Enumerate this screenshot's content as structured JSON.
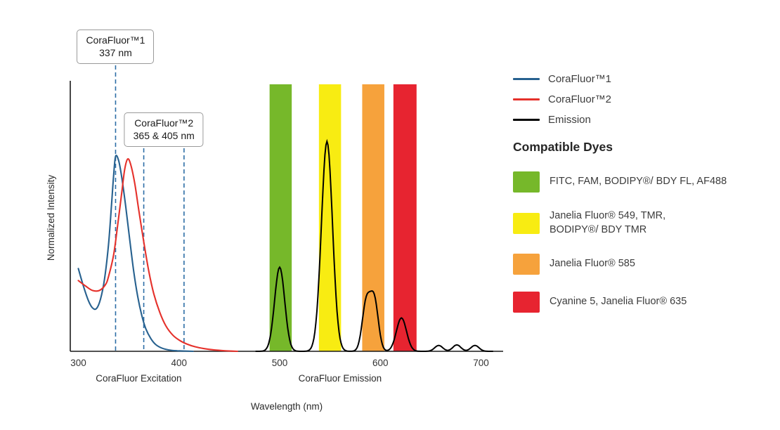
{
  "page": {
    "background": "#ffffff"
  },
  "callouts": {
    "callout1": {
      "line1": "CoraFluor™1",
      "line2": "337 nm"
    },
    "callout2": {
      "line1": "CoraFluor™2",
      "line2": "365 & 405 nm"
    }
  },
  "legend": {
    "items": [
      {
        "label": "CoraFluor™1",
        "color": "#27618f"
      },
      {
        "label": "CoraFluor™2",
        "color": "#e5312b"
      },
      {
        "label": "Emission",
        "color": "#000000"
      }
    ]
  },
  "compatible_dyes": {
    "heading": "Compatible Dyes",
    "items": [
      {
        "label": "FITC, FAM, BODIPY®/ BDY FL, AF488",
        "color": "#76b82a"
      },
      {
        "label": "Janelia Fluor® 549, TMR,\nBODIPY®/ BDY TMR",
        "color": "#f8ec12"
      },
      {
        "label": "Janelia Fluor® 585",
        "color": "#f6a23c"
      },
      {
        "label": "Cyanine 5, Janelia Fluor® 635",
        "color": "#e72430"
      }
    ]
  },
  "chart_data": {
    "type": "line",
    "title": "",
    "xlabel": "Wavelength (nm)",
    "ylabel": "Normalized Intensity",
    "xlim": [
      292,
      722
    ],
    "ylim": [
      0,
      1.0
    ],
    "x_ticks": [
      300,
      400,
      500,
      600,
      700
    ],
    "grid": false,
    "legend_position": "right",
    "axis_section_labels": [
      {
        "text": "CoraFluor Excitation",
        "center_nm": 360
      },
      {
        "text": "CoraFluor Emission",
        "center_nm": 560
      }
    ],
    "dashed_line_color": "#2d6ea6",
    "dashed_lines": [
      {
        "nm": 337,
        "callout": "callout1"
      },
      {
        "nm": 365,
        "callout": "callout2"
      },
      {
        "nm": 405,
        "callout": "callout2"
      }
    ],
    "filter_bands": [
      {
        "id": "green",
        "color": "#76b82a",
        "from_nm": 490,
        "to_nm": 512,
        "dyes": "FITC, FAM, BODIPY®/ BDY FL, AF488"
      },
      {
        "id": "yellow",
        "color": "#f8ec12",
        "from_nm": 539,
        "to_nm": 561,
        "dyes": "Janelia Fluor® 549, TMR, BODIPY®/ BDY TMR"
      },
      {
        "id": "orange",
        "color": "#f6a23c",
        "from_nm": 582,
        "to_nm": 604,
        "dyes": "Janelia Fluor® 585"
      },
      {
        "id": "red",
        "color": "#e72430",
        "from_nm": 613,
        "to_nm": 636,
        "dyes": "Cyanine 5, Janelia Fluor® 635"
      }
    ],
    "series": [
      {
        "name": "CoraFluor™1",
        "kind": "excitation",
        "color": "#27618f",
        "points": [
          [
            300,
            0.31
          ],
          [
            305,
            0.245
          ],
          [
            310,
            0.19
          ],
          [
            314,
            0.163
          ],
          [
            318,
            0.16
          ],
          [
            322,
            0.195
          ],
          [
            326,
            0.27
          ],
          [
            330,
            0.4
          ],
          [
            333,
            0.55
          ],
          [
            335,
            0.655
          ],
          [
            337,
            0.73
          ],
          [
            340,
            0.715
          ],
          [
            343,
            0.655
          ],
          [
            347,
            0.545
          ],
          [
            351,
            0.42
          ],
          [
            355,
            0.3
          ],
          [
            359,
            0.205
          ],
          [
            363,
            0.135
          ],
          [
            367,
            0.085
          ],
          [
            372,
            0.048
          ],
          [
            377,
            0.025
          ],
          [
            383,
            0.012
          ],
          [
            390,
            0.005
          ],
          [
            398,
            0.002
          ],
          [
            406,
            0.001
          ],
          [
            414,
            0
          ]
        ]
      },
      {
        "name": "CoraFluor™2",
        "kind": "excitation",
        "color": "#e5312b",
        "points": [
          [
            300,
            0.265
          ],
          [
            307,
            0.245
          ],
          [
            314,
            0.228
          ],
          [
            321,
            0.228
          ],
          [
            327,
            0.25
          ],
          [
            330,
            0.28
          ],
          [
            335,
            0.36
          ],
          [
            339,
            0.47
          ],
          [
            343,
            0.59
          ],
          [
            346,
            0.68
          ],
          [
            349,
            0.72
          ],
          [
            352,
            0.7
          ],
          [
            356,
            0.63
          ],
          [
            360,
            0.53
          ],
          [
            365,
            0.41
          ],
          [
            370,
            0.3
          ],
          [
            375,
            0.215
          ],
          [
            381,
            0.145
          ],
          [
            387,
            0.095
          ],
          [
            394,
            0.06
          ],
          [
            401,
            0.04
          ],
          [
            408,
            0.027
          ],
          [
            416,
            0.017
          ],
          [
            425,
            0.01
          ],
          [
            435,
            0.005
          ],
          [
            446,
            0.002
          ],
          [
            458,
            0
          ]
        ]
      },
      {
        "name": "Emission",
        "kind": "emission",
        "color": "#000000",
        "range": [
          476,
          712
        ],
        "peaks": [
          {
            "center": 500,
            "height": 0.315,
            "sigma": 5
          },
          {
            "center": 547,
            "height": 0.786,
            "sigma": 5.5
          },
          {
            "center": 586,
            "height": 0.18,
            "sigma": 4
          },
          {
            "center": 594,
            "height": 0.19,
            "sigma": 4
          },
          {
            "center": 621,
            "height": 0.125,
            "sigma": 5
          },
          {
            "center": 658,
            "height": 0.022,
            "sigma": 4
          },
          {
            "center": 676,
            "height": 0.024,
            "sigma": 4
          },
          {
            "center": 694,
            "height": 0.022,
            "sigma": 4
          }
        ]
      }
    ]
  }
}
